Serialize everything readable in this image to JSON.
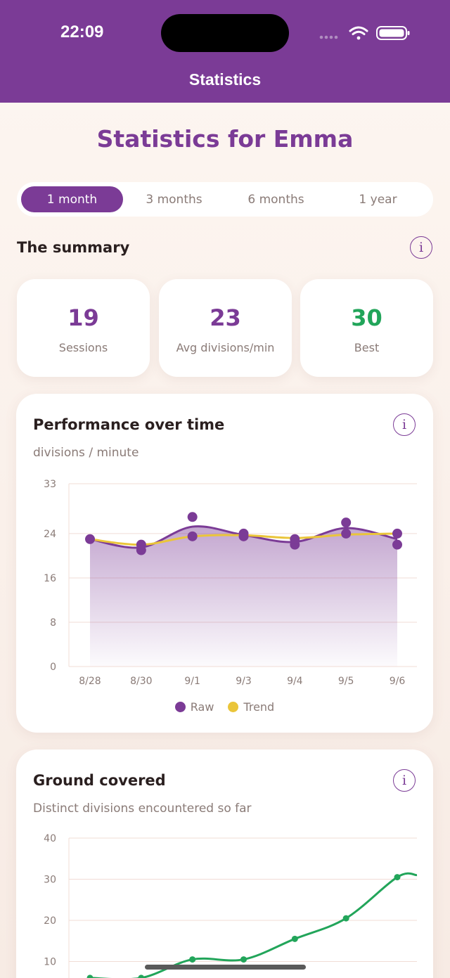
{
  "status_bar": {
    "time": "22:09"
  },
  "header": {
    "title": "Statistics"
  },
  "page": {
    "title": "Statistics for Emma"
  },
  "range_tabs": [
    {
      "label": "1 month",
      "active": true
    },
    {
      "label": "3 months",
      "active": false
    },
    {
      "label": "6 months",
      "active": false
    },
    {
      "label": "1 year",
      "active": false
    }
  ],
  "summary": {
    "title": "The summary",
    "info_icon": "i",
    "cards": [
      {
        "value": "19",
        "label": "Sessions"
      },
      {
        "value": "23",
        "label": "Avg divisions/min"
      },
      {
        "value": "30",
        "label": "Best"
      }
    ]
  },
  "colors": {
    "accent": "#7b3b96",
    "trend": "#eac53a",
    "best": "#22a55a"
  },
  "performance": {
    "title": "Performance over time",
    "subtitle": "divisions / minute",
    "info_icon": "i",
    "legend": [
      "Raw",
      "Trend"
    ]
  },
  "ground": {
    "title": "Ground covered",
    "subtitle": "Distinct divisions encountered so far",
    "info_icon": "i"
  },
  "chart_data": [
    {
      "type": "line",
      "title": "Performance over time",
      "ylabel": "divisions / minute",
      "ylim": [
        0,
        33
      ],
      "yticks": [
        0,
        8,
        16,
        24,
        33
      ],
      "categories": [
        "8/28",
        "8/30",
        "9/1",
        "9/3",
        "9/4",
        "9/5",
        "9/6"
      ],
      "series": [
        {
          "name": "Raw",
          "x": [
            0,
            1,
            1,
            2,
            2,
            3,
            3,
            4,
            4,
            5,
            5,
            6,
            6
          ],
          "y": [
            23,
            22,
            21,
            27,
            23.5,
            24,
            23.5,
            22,
            23,
            26,
            24,
            22,
            24
          ]
        },
        {
          "name": "Trend",
          "x": [
            0,
            1,
            2,
            3,
            4,
            5,
            6
          ],
          "y": [
            23,
            22,
            23.5,
            23.7,
            23.2,
            23.8,
            24
          ]
        }
      ],
      "grid": true,
      "legend": "bottom"
    },
    {
      "type": "line",
      "title": "Ground covered",
      "ylabel": "Distinct divisions encountered so far",
      "ylim": [
        0,
        40
      ],
      "yticks": [
        10,
        20,
        30,
        40
      ],
      "series": [
        {
          "x": [
            0,
            1,
            2,
            3,
            4,
            5,
            6
          ],
          "y": [
            6,
            6,
            10.5,
            10.5,
            15.5,
            20.5,
            30.5
          ]
        }
      ],
      "grid": true
    }
  ]
}
